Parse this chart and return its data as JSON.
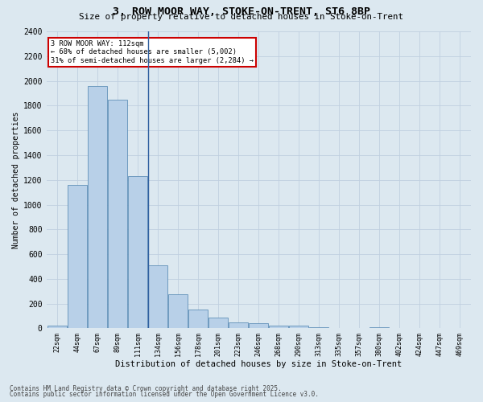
{
  "title1": "3, ROW MOOR WAY, STOKE-ON-TRENT, ST6 8BP",
  "title2": "Size of property relative to detached houses in Stoke-on-Trent",
  "xlabel": "Distribution of detached houses by size in Stoke-on-Trent",
  "ylabel": "Number of detached properties",
  "categories": [
    "22sqm",
    "44sqm",
    "67sqm",
    "89sqm",
    "111sqm",
    "134sqm",
    "156sqm",
    "178sqm",
    "201sqm",
    "223sqm",
    "246sqm",
    "268sqm",
    "290sqm",
    "313sqm",
    "335sqm",
    "357sqm",
    "380sqm",
    "402sqm",
    "424sqm",
    "447sqm",
    "469sqm"
  ],
  "values": [
    25,
    1160,
    1960,
    1850,
    1230,
    510,
    275,
    155,
    90,
    50,
    40,
    22,
    20,
    12,
    0,
    0,
    12,
    0,
    0,
    0,
    0
  ],
  "bar_color": "#b8d0e8",
  "bar_edge_color": "#6090b8",
  "vline_x": 4.5,
  "annotation_line1": "3 ROW MOOR WAY: 112sqm",
  "annotation_line2": "← 68% of detached houses are smaller (5,002)",
  "annotation_line3": "31% of semi-detached houses are larger (2,284) →",
  "annotation_box_color": "#ffffff",
  "annotation_box_edge": "#cc0000",
  "vline_color": "#3060a0",
  "grid_color": "#c0cfe0",
  "background_color": "#dce8f0",
  "footer1": "Contains HM Land Registry data © Crown copyright and database right 2025.",
  "footer2": "Contains public sector information licensed under the Open Government Licence v3.0.",
  "ylim": [
    0,
    2400
  ],
  "yticks": [
    0,
    200,
    400,
    600,
    800,
    1000,
    1200,
    1400,
    1600,
    1800,
    2000,
    2200,
    2400
  ]
}
